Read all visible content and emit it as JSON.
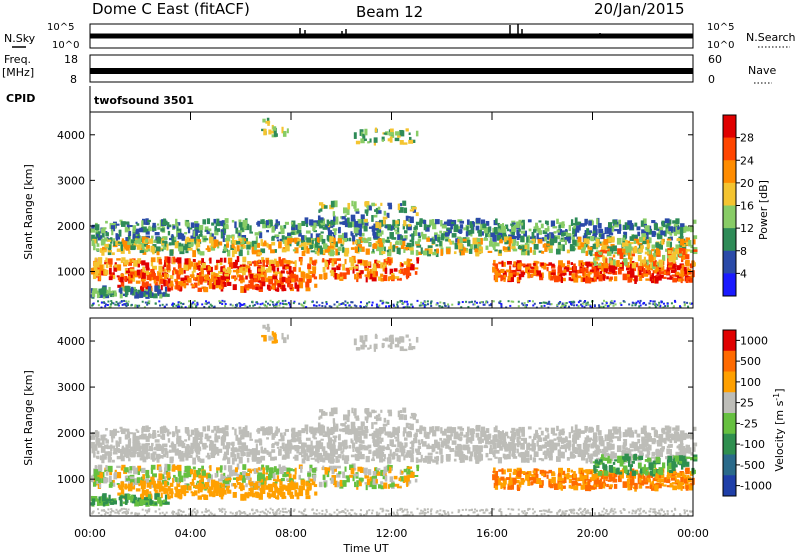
{
  "header": {
    "station": "Dome C East (fitACF)",
    "beam": "Beam 12",
    "date": "20/Jan/2015"
  },
  "strip": {
    "nsky_label": "N.Sky",
    "nsky_ticks": [
      "10^5",
      "10^0"
    ],
    "nsearch_label": "N.Search",
    "nsearch_ticks": [
      "10^5",
      "10^0"
    ],
    "freq_label": "Freq.",
    "freq_unit": "[MHz]",
    "freq_ticks": [
      "18",
      "8"
    ],
    "nave_label": "Nave",
    "nave_ticks": [
      "60",
      "0"
    ],
    "cpid_label": "CPID",
    "cpid_value": "twofsound 3501"
  },
  "colors": {
    "power": [
      "#1a1aff",
      "#2a4aa8",
      "#2e8b57",
      "#88cc66",
      "#f4c430",
      "#ff8c00",
      "#ff4500",
      "#e00000"
    ],
    "velocity": [
      "#1f3fa8",
      "#2a6a8a",
      "#2f8f4f",
      "#66c040",
      "#bdbdb8",
      "#ffa000",
      "#ff6a00",
      "#e00000"
    ]
  },
  "chart_data": [
    {
      "type": "heatmap",
      "quantity": "Power",
      "ylabel": "Slant Range [km]",
      "ylim": [
        200,
        4500
      ],
      "y_ticks": [
        "1000",
        "2000",
        "3000",
        "4000"
      ],
      "xlim": [
        "00:00",
        "24:00"
      ],
      "colorbar_label": "Power [dB]",
      "colorbar_ticks": [
        "4",
        "8",
        "12",
        "16",
        "20",
        "24",
        "28"
      ]
    },
    {
      "type": "heatmap",
      "quantity": "Velocity",
      "ylabel": "Slant Range [km]",
      "ylim": [
        200,
        4500
      ],
      "y_ticks": [
        "1000",
        "2000",
        "3000",
        "4000"
      ],
      "xlim": [
        "00:00",
        "24:00"
      ],
      "xlabel": "Time UT",
      "x_ticks": [
        "00:00",
        "04:00",
        "08:00",
        "12:00",
        "16:00",
        "20:00",
        "00:00"
      ],
      "colorbar_label": "Velocity [m s",
      "colorbar_label_sup": "-1",
      "colorbar_ticks": [
        "1000",
        "500",
        "100",
        "25",
        "-25",
        "-100",
        "-500",
        "-1000"
      ]
    }
  ]
}
